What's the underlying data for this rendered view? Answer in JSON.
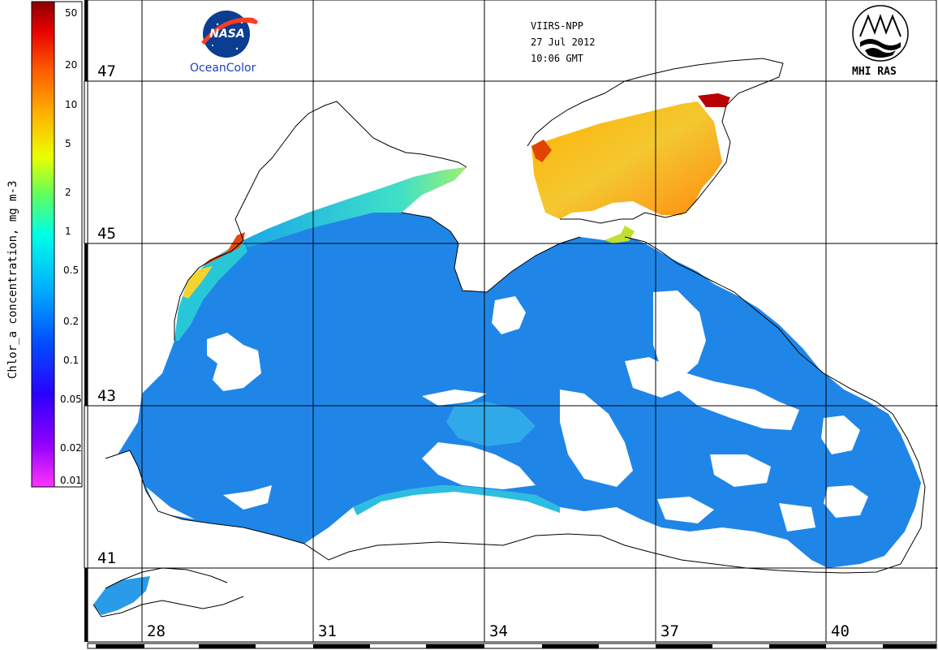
{
  "header": {
    "sensor": "VIIRS-NPP",
    "date": "27 Jul 2012",
    "time": "10:06 GMT"
  },
  "logos": {
    "nasa_text": "NASA",
    "oceancolor_text": "OceanColor",
    "mhi_text": "MHI RAS"
  },
  "colorbar": {
    "title": "Chlor_a concentration, mg m-3",
    "scale": "log",
    "range": [
      0.01,
      60
    ],
    "ticks": [
      "50",
      "20",
      "10",
      "5",
      "2",
      "1",
      "0.5",
      "0.2",
      "0.1",
      "0.05",
      "0.02",
      "0.01"
    ],
    "colors": [
      "#ff33ff",
      "#8f00ff",
      "#2a00ff",
      "#0050ff",
      "#00a8ff",
      "#00ffe8",
      "#5cff60",
      "#eaff00",
      "#ffb000",
      "#ff5a00",
      "#e60000",
      "#8c0000"
    ]
  },
  "map": {
    "latitude_labels": [
      "47",
      "45",
      "43",
      "41"
    ],
    "longitude_labels": [
      "28",
      "31",
      "34",
      "37",
      "40"
    ],
    "colors": {
      "open_sea": "#1f86e8",
      "coastal": "#19c3e8",
      "azov": "#f4b022",
      "land": "#ffffff",
      "coastline": "#000000",
      "grid": "#000000"
    }
  }
}
